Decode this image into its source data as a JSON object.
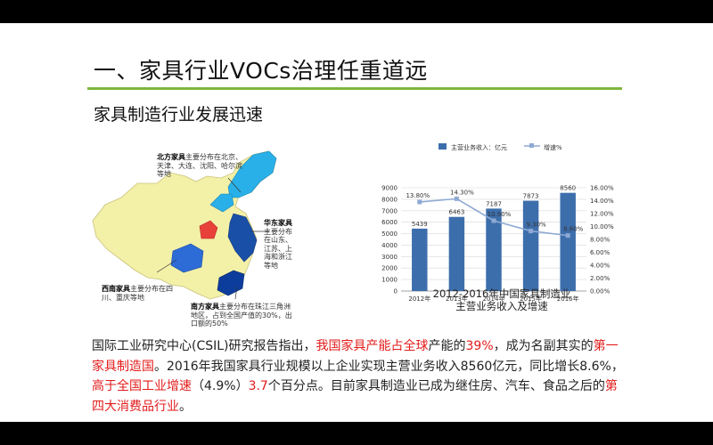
{
  "title": "一、家具行业VOCs治理任重道远",
  "subtitle": "家具制造行业发展迅速",
  "map": {
    "north": {
      "name": "北方家具",
      "desc": "主要分布在北京、天津、大连、沈阳、哈尔滨等地"
    },
    "east": {
      "name": "华东家具",
      "desc": "主要分布在山东、江苏、上海和浙江等地"
    },
    "southwest": {
      "name": "西南家具",
      "desc": "主要分布在四川、重庆等地"
    },
    "south": {
      "name": "南方家具",
      "desc": "主要分布在珠江三角洲地区，占到全国产值的30%，出口额的50%"
    },
    "colors": {
      "north": "#2ab0e8",
      "east": "#1a4fa8",
      "southwest": "#2d6bd6",
      "south": "#0d3d9c",
      "center": "#e8413a",
      "base": "#f3f0a8"
    }
  },
  "chart_data": {
    "type": "bar",
    "categories": [
      "2012年",
      "2013年",
      "2014年",
      "2015年",
      "2016年"
    ],
    "series": [
      {
        "name": "主营业务收入：亿元",
        "type": "bar",
        "axis": "left",
        "values": [
          5439,
          6463,
          7187,
          7873,
          8560
        ],
        "labels": [
          "5439",
          "6463",
          "7187",
          "7873",
          "8560"
        ],
        "color": "#3d6eac"
      },
      {
        "name": "增速%",
        "type": "line",
        "axis": "right",
        "values": [
          13.8,
          14.3,
          10.9,
          9.3,
          8.6
        ],
        "labels": [
          "13.80%",
          "14.30%",
          "10.90%",
          "9.30%",
          "8.60%"
        ],
        "color": "#8ea9d4"
      }
    ],
    "y_left": {
      "min": 0,
      "max": 9000,
      "ticks": [
        "0",
        "1000",
        "2000",
        "3000",
        "4000",
        "5000",
        "6000",
        "7000",
        "8000",
        "9000"
      ]
    },
    "y_right": {
      "min": 0,
      "max": 16,
      "ticks": [
        "0.00%",
        "2.00%",
        "4.00%",
        "6.00%",
        "8.00%",
        "10.00%",
        "12.00%",
        "14.00%",
        "16.00%"
      ]
    },
    "grid": true,
    "legend": "top",
    "caption_line1": "2012-2016年中国家具制造业",
    "caption_line2": "主营业务收入及增速"
  },
  "body": {
    "p1": "国际工业研究中心(CSIL)研究报告指出，",
    "r1": "我国家具产能占全球",
    "p2": "产能的",
    "r2": "39%",
    "p3": "，成为名副其实的",
    "r3": "第一家具制造国",
    "p4": "。2016年我国家具行业规模以上企业实现主营业务收入8560亿元，同比增长8.6%，",
    "r4": "高于全国工业增速",
    "p5": "（4.9%）",
    "r5": "3.7",
    "p6": "个百分点。目前家具制造业已成为继住房、汽车、食品之后的",
    "r6": "第四大消费品行业",
    "p7": "。"
  }
}
